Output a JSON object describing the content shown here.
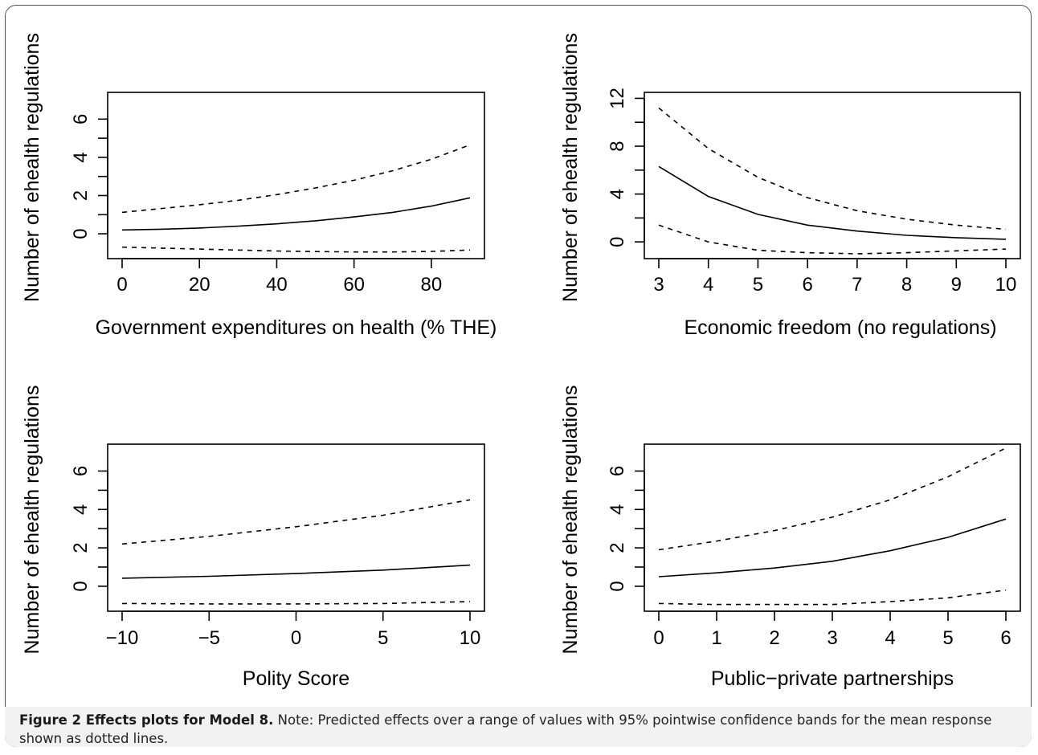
{
  "chart_data": [
    {
      "type": "line",
      "xlabel": "Government expenditures on health (% THE)",
      "ylabel": "Number of ehealth regulations",
      "xlim": [
        0,
        90
      ],
      "ylim": [
        -1.3,
        7.4
      ],
      "xticks": [
        0,
        20,
        40,
        60,
        80
      ],
      "yticks": [
        0,
        2,
        4,
        6
      ],
      "x": [
        0,
        10,
        20,
        30,
        40,
        50,
        60,
        70,
        80,
        90
      ],
      "series": [
        {
          "role": "upper",
          "style": "dashed",
          "values": [
            1.12,
            1.32,
            1.52,
            1.75,
            2.05,
            2.4,
            2.8,
            3.3,
            3.9,
            4.65
          ]
        },
        {
          "role": "fit",
          "style": "solid",
          "values": [
            0.2,
            0.24,
            0.3,
            0.4,
            0.52,
            0.68,
            0.88,
            1.12,
            1.45,
            1.88
          ]
        },
        {
          "role": "lower",
          "style": "dashed",
          "values": [
            -0.7,
            -0.75,
            -0.8,
            -0.85,
            -0.9,
            -0.93,
            -0.95,
            -0.95,
            -0.92,
            -0.85
          ]
        }
      ]
    },
    {
      "type": "line",
      "xlabel": "Economic freedom (no regulations)",
      "ylabel": "Number of ehealth regulations",
      "xlim": [
        3,
        10
      ],
      "ylim": [
        -1.4,
        12.5
      ],
      "xticks": [
        3,
        4,
        5,
        6,
        7,
        8,
        9,
        10
      ],
      "yticks": [
        0,
        4,
        8,
        12
      ],
      "x": [
        3,
        4,
        5,
        6,
        7,
        8,
        9,
        10
      ],
      "series": [
        {
          "role": "upper",
          "style": "dashed",
          "values": [
            11.2,
            7.8,
            5.4,
            3.7,
            2.6,
            1.9,
            1.4,
            1.05
          ]
        },
        {
          "role": "fit",
          "style": "solid",
          "values": [
            6.3,
            3.8,
            2.3,
            1.4,
            0.9,
            0.55,
            0.35,
            0.22
          ]
        },
        {
          "role": "lower",
          "style": "dashed",
          "values": [
            1.4,
            0.0,
            -0.7,
            -0.9,
            -1.0,
            -0.9,
            -0.75,
            -0.6
          ]
        }
      ]
    },
    {
      "type": "line",
      "xlabel": "Polity Score",
      "ylabel": "Number of ehealth regulations",
      "xlim": [
        -10,
        10
      ],
      "ylim": [
        -1.3,
        7.4
      ],
      "xticks": [
        -10,
        -5,
        0,
        5,
        10
      ],
      "yticks": [
        0,
        2,
        4,
        6
      ],
      "x": [
        -10,
        -5,
        0,
        5,
        10
      ],
      "series": [
        {
          "role": "upper",
          "style": "dashed",
          "values": [
            2.2,
            2.6,
            3.1,
            3.7,
            4.5
          ]
        },
        {
          "role": "fit",
          "style": "solid",
          "values": [
            0.42,
            0.52,
            0.66,
            0.84,
            1.1
          ]
        },
        {
          "role": "lower",
          "style": "dashed",
          "values": [
            -0.9,
            -0.92,
            -0.92,
            -0.9,
            -0.8
          ]
        }
      ]
    },
    {
      "type": "line",
      "xlabel": "Public−private partnerships",
      "ylabel": "Number of ehealth regulations",
      "xlim": [
        0,
        6
      ],
      "ylim": [
        -1.3,
        7.4
      ],
      "xticks": [
        0,
        1,
        2,
        3,
        4,
        5,
        6
      ],
      "yticks": [
        0,
        2,
        4,
        6
      ],
      "x": [
        0,
        1,
        2,
        3,
        4,
        5,
        6
      ],
      "series": [
        {
          "role": "upper",
          "style": "dashed",
          "values": [
            1.9,
            2.35,
            2.9,
            3.6,
            4.5,
            5.7,
            7.2
          ]
        },
        {
          "role": "fit",
          "style": "solid",
          "values": [
            0.5,
            0.7,
            0.95,
            1.3,
            1.85,
            2.55,
            3.5
          ]
        },
        {
          "role": "lower",
          "style": "dashed",
          "values": [
            -0.9,
            -0.95,
            -0.95,
            -0.95,
            -0.8,
            -0.6,
            -0.2
          ]
        }
      ]
    }
  ],
  "caption": {
    "title": "Figure 2 Effects plots for Model 8.",
    "text": " Note: Predicted effects over a range of values with 95% pointwise confidence bands for the mean response shown as dotted lines."
  }
}
